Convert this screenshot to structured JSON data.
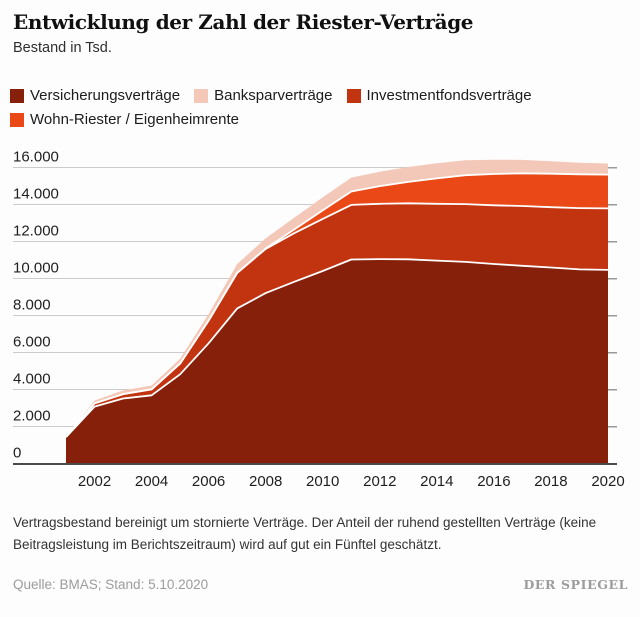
{
  "header": {
    "title": "Entwicklung der Zahl der Riester-Verträge",
    "subtitle": "Bestand in Tsd."
  },
  "footnote": "Vertragsbestand bereinigt um stornierte Verträge. Der Anteil der ruhend gestellten Verträge (keine Beitragsleistung im Berichtszeitraum) wird auf gut ein Fünftel geschätzt.",
  "source": "Quelle: BMAS; Stand: 5.10.2020",
  "brand": "DER SPIEGEL",
  "chart_data": {
    "type": "area",
    "stacked": true,
    "title": "Entwicklung der Zahl der Riester-Verträge",
    "ylabel": "Bestand in Tsd.",
    "xlabel": "",
    "grid": true,
    "legend_position": "top",
    "ylim": [
      0,
      16000
    ],
    "x": [
      2001,
      2002,
      2003,
      2004,
      2005,
      2006,
      2007,
      2008,
      2009,
      2010,
      2011,
      2012,
      2013,
      2014,
      2015,
      2016,
      2017,
      2018,
      2019,
      2020
    ],
    "series": [
      {
        "id": "versicherungsvertraege",
        "name": "Versicherungsverträge",
        "color": "#86200a",
        "values": [
          1400,
          3047,
          3486,
          3661,
          4797,
          6468,
          8355,
          9185,
          9794,
          10380,
          10998,
          11023,
          11013,
          10938,
          10870,
          10755,
          10660,
          10566,
          10467,
          10436
        ]
      },
      {
        "id": "investmentfondsvertraege",
        "name": "Investmentfondsverträge",
        "color": "#c23310",
        "values": [
          0,
          174,
          241,
          316,
          574,
          1231,
          1922,
          2386,
          2629,
          2815,
          2953,
          2989,
          3027,
          3071,
          3125,
          3174,
          3233,
          3263,
          3311,
          3327
        ]
      },
      {
        "id": "wohn-riester",
        "name": "Wohn-Riester / Eigenheimrente",
        "color": "#ea4917",
        "values": [
          0,
          0,
          0,
          0,
          0,
          0,
          0,
          22,
          197,
          460,
          724,
          953,
          1154,
          1377,
          1564,
          1691,
          1767,
          1809,
          1827,
          1828
        ]
      },
      {
        "id": "banksparvertraege",
        "name": "Banksparverträge",
        "color": "#f4c8b8",
        "values": [
          0,
          150,
          197,
          213,
          260,
          351,
          480,
          554,
          634,
          703,
          750,
          781,
          805,
          814,
          804,
          774,
          724,
          674,
          624,
          600
        ]
      }
    ],
    "legend_order": [
      0,
      3,
      1,
      2
    ],
    "y_ticks": [
      {
        "value": 0,
        "label": "0"
      },
      {
        "value": 2000,
        "label": "2.000"
      },
      {
        "value": 4000,
        "label": "4.000"
      },
      {
        "value": 6000,
        "label": "6.000"
      },
      {
        "value": 8000,
        "label": "8.000"
      },
      {
        "value": 10000,
        "label": "10.000"
      },
      {
        "value": 12000,
        "label": "12.000"
      },
      {
        "value": 14000,
        "label": "14.000"
      },
      {
        "value": 16000,
        "label": "16.000"
      }
    ],
    "x_ticks": [
      2002,
      2004,
      2006,
      2008,
      2010,
      2012,
      2014,
      2016,
      2018,
      2020
    ],
    "colors": {
      "gridline": "#cbcbcb",
      "axis": "#4a4a4a",
      "tick": "#999999",
      "tick_label": "#1f1f1f",
      "separator": "#ffffff"
    }
  }
}
